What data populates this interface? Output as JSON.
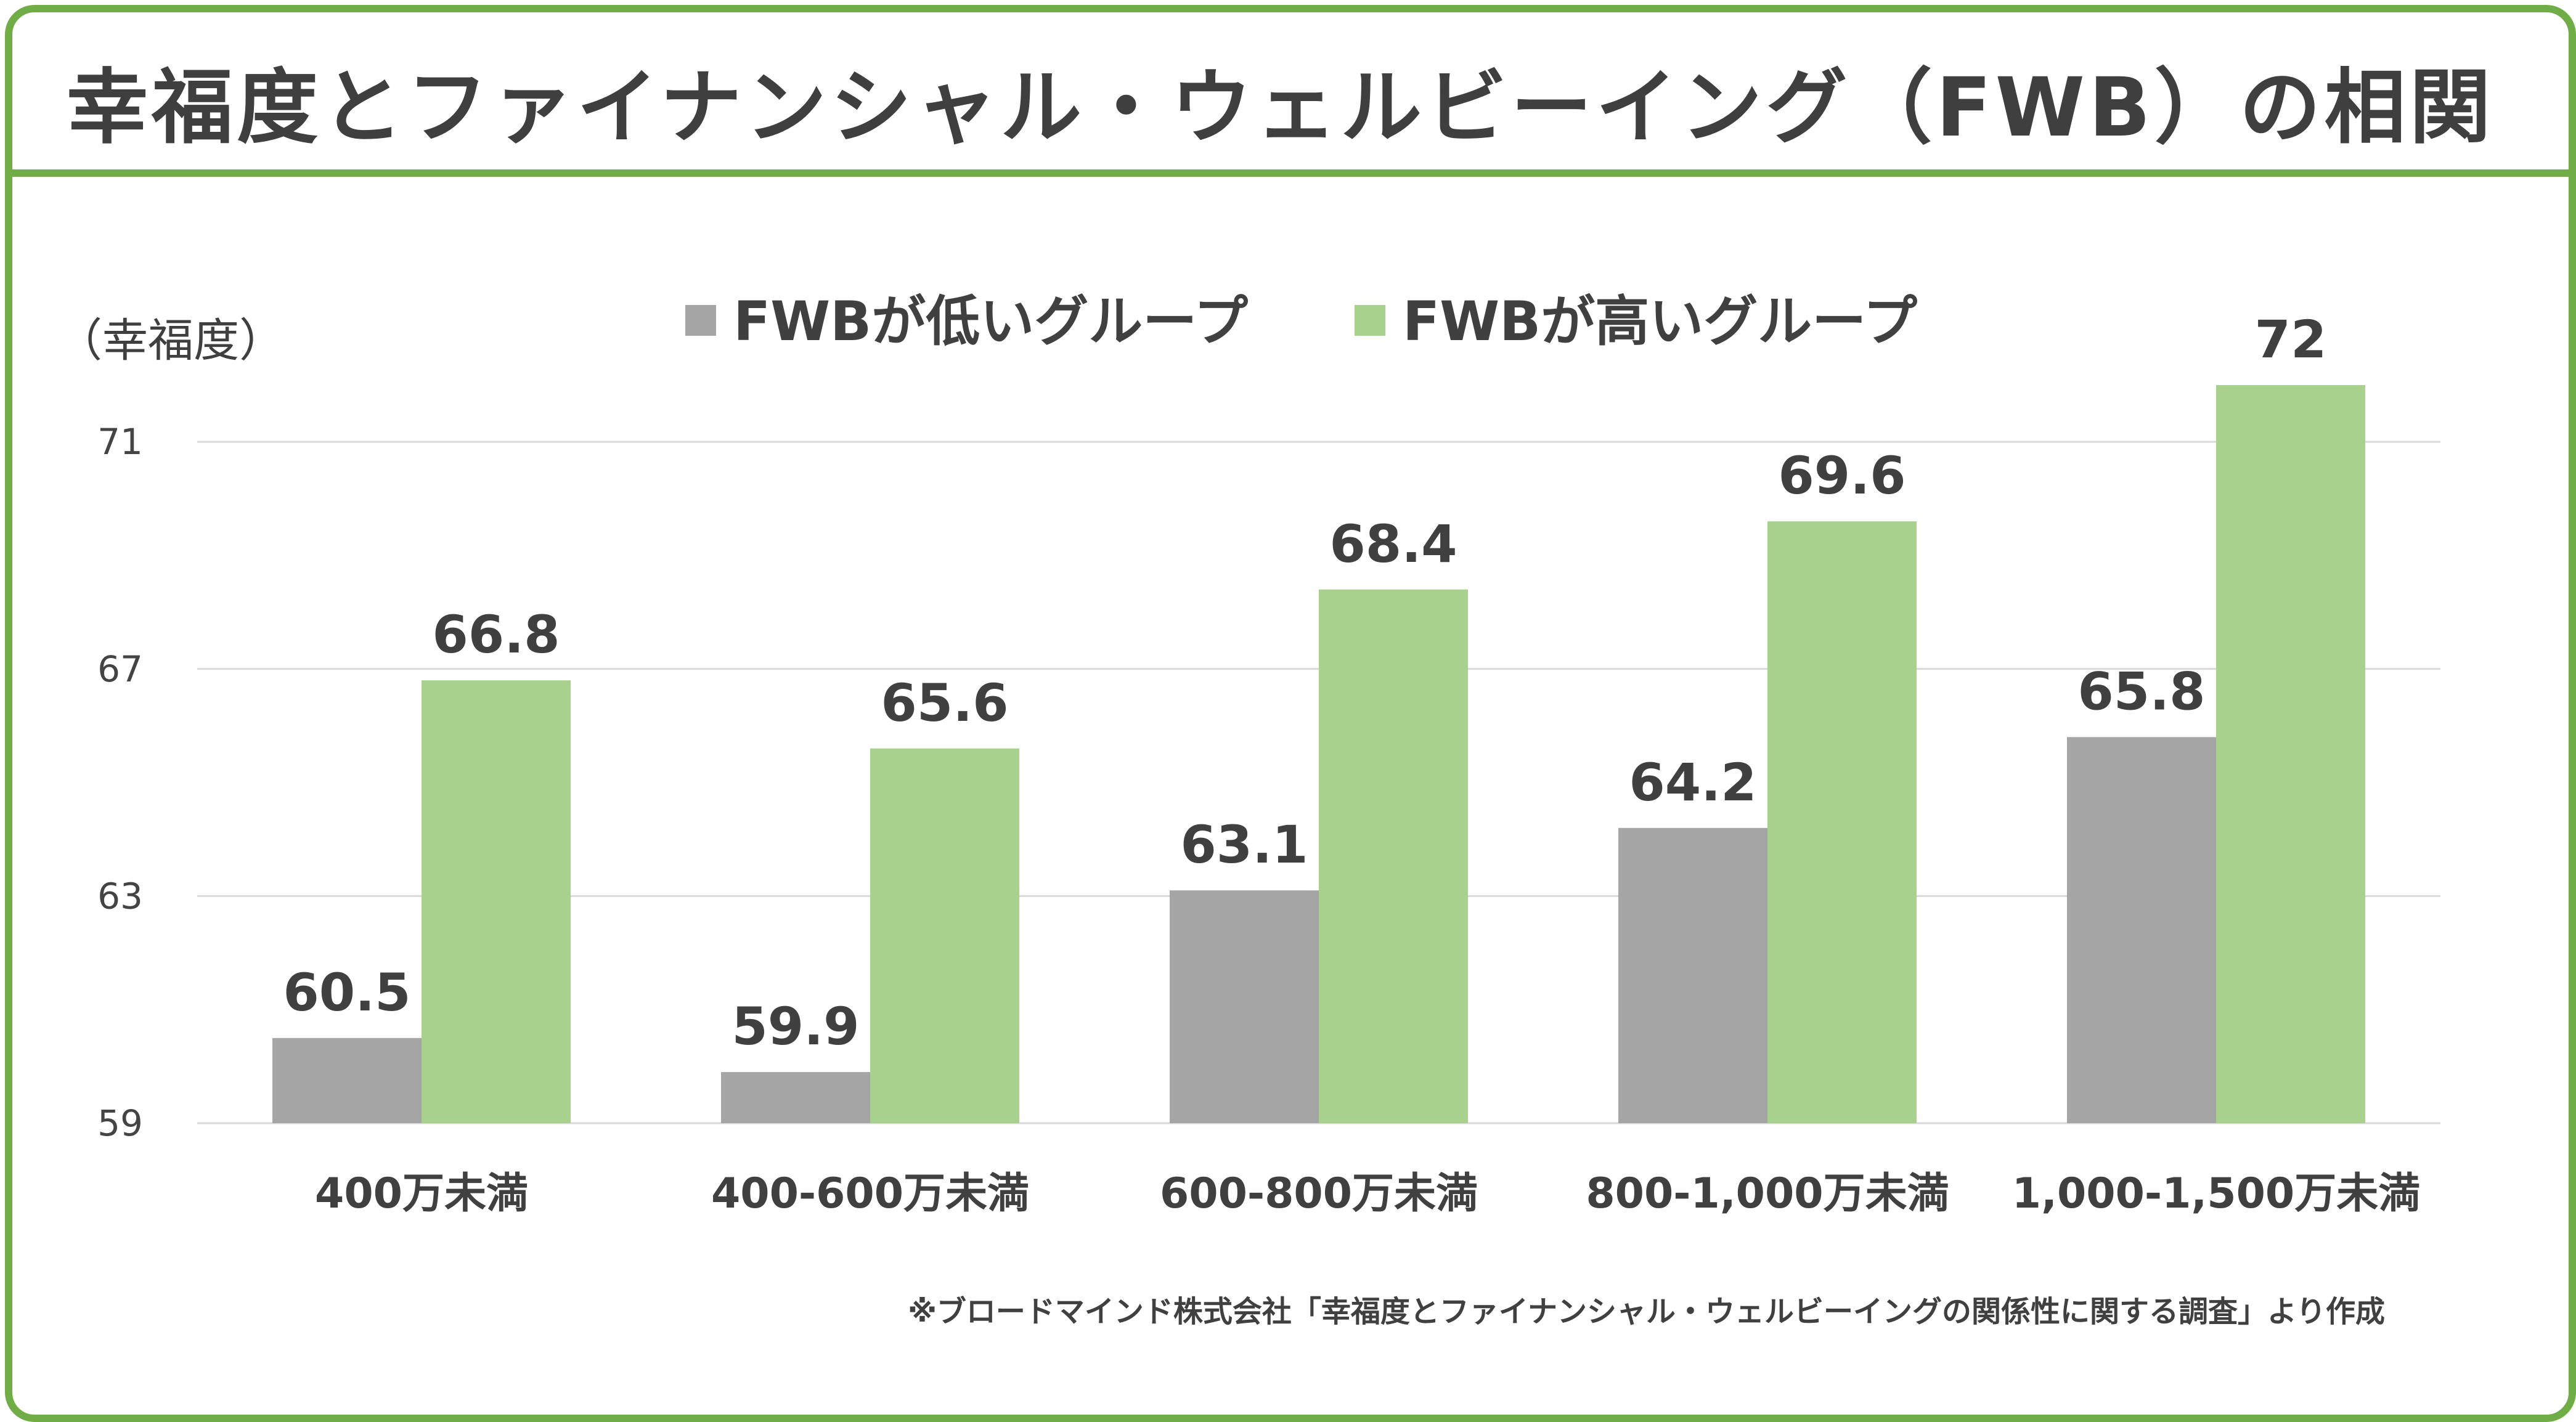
{
  "title": "幸福度とファイナンシャル・ウェルビーイング（FWB）の相関",
  "chart_data": {
    "type": "bar",
    "title": "幸福度とファイナンシャル・ウェルビーイング（FWB）の相関",
    "ylabel": "（幸福度）",
    "xlabel": "",
    "ylim": [
      59,
      72
    ],
    "yticks": [
      59,
      63,
      67,
      71
    ],
    "grid": true,
    "legend_position": "top-center",
    "categories": [
      "400万未満",
      "400-600万未満",
      "600-800万未満",
      "800-1,000万未満",
      "1,000-1,500万未満"
    ],
    "series": [
      {
        "name": "FWBが低いグループ",
        "color": "#a5a5a5",
        "values": [
          60.5,
          59.9,
          63.1,
          64.2,
          65.8
        ],
        "labels": [
          "60.5",
          "59.9",
          "63.1",
          "64.2",
          "65.8"
        ]
      },
      {
        "name": "FWBが高いグループ",
        "color": "#a9d18e",
        "values": [
          66.8,
          65.6,
          68.4,
          69.6,
          72
        ],
        "labels": [
          "66.8",
          "65.6",
          "68.4",
          "69.6",
          "72"
        ]
      }
    ],
    "source_note": "※ブロードマインド株式会社「幸福度とファイナンシャル・ウェルビーイングの関係性に関する調査」より作成"
  },
  "colors": {
    "frame": "#70ad47",
    "low": "#a5a5a5",
    "high": "#a9d18e",
    "grid": "#d9d9d9",
    "text": "#404040"
  }
}
